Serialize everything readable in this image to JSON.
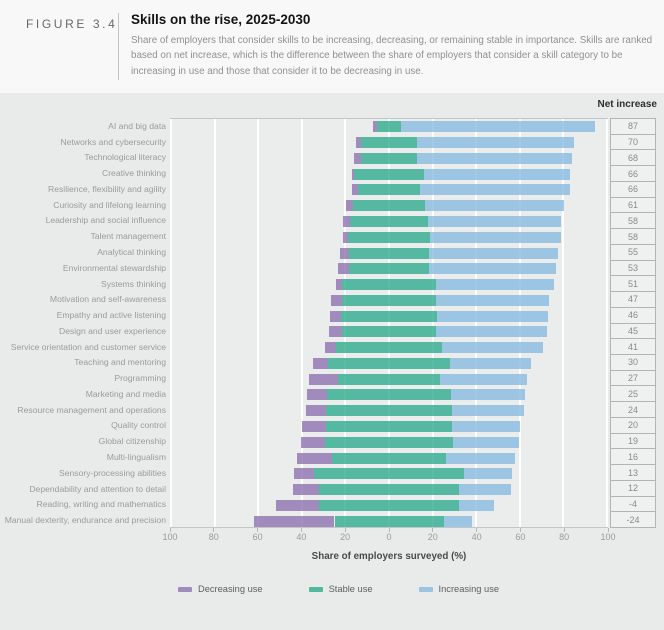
{
  "header": {
    "figure_label": "FIGURE 3.4",
    "title": "Skills on the rise, 2025-2030",
    "subtitle": "Share of employers that consider skills to be increasing, decreasing, or remaining stable in importance. Skills are ranked based on net increase, which is the difference between the share of employers that consider a skill category to be increasing in use and those that consider it to be decreasing in use."
  },
  "chart_data": {
    "type": "bar",
    "orientation": "horizontal-diverging-stacked",
    "title": "Skills on the rise, 2025-2030",
    "xlabel": "Share of employers surveyed (%)",
    "net_column_header": "Net increase",
    "categories": [
      "AI and big data",
      "Networks and cybersecurity",
      "Technological literacy",
      "Creative thinking",
      "Resilience, flexibility and agility",
      "Curiosity and lifelong learning",
      "Leadership and social influence",
      "Talent management",
      "Analytical thinking",
      "Environmental stewardship",
      "Systems thinking",
      "Motivation and self-awareness",
      "Empathy and active listening",
      "Design and user experience",
      "Service orientation and customer service",
      "Teaching and mentoring",
      "Programming",
      "Marketing and media",
      "Resource management and operations",
      "Quality control",
      "Global citizenship",
      "Multi-lingualism",
      "Sensory-processing abilities",
      "Dependability and attention to detail",
      "Reading, writing and mathematics",
      "Manual dexterity, endurance and precision"
    ],
    "series": [
      {
        "name": "Decreasing use",
        "color": "#8a6fae",
        "values": [
          2,
          2,
          3,
          1,
          3,
          3,
          3,
          2,
          4,
          5,
          3,
          5,
          5,
          6,
          5,
          7,
          13,
          9,
          9,
          11,
          11,
          16,
          9,
          12,
          20,
          37
        ]
      },
      {
        "name": "Stable use",
        "color": "#2aa98c",
        "values": [
          11,
          26,
          26,
          32,
          28,
          33,
          36,
          38,
          37,
          37,
          43,
          43,
          44,
          43,
          49,
          56,
          47,
          57,
          58,
          58,
          59,
          52,
          69,
          64,
          64,
          50
        ]
      },
      {
        "name": "Increasing use",
        "color": "#85b9e0",
        "values": [
          89,
          72,
          71,
          67,
          69,
          64,
          61,
          60,
          59,
          58,
          54,
          52,
          51,
          51,
          46,
          37,
          40,
          34,
          33,
          31,
          30,
          32,
          22,
          24,
          16,
          13
        ]
      }
    ],
    "net_increase": [
      87,
      70,
      68,
      66,
      66,
      61,
      58,
      58,
      55,
      53,
      51,
      47,
      46,
      45,
      41,
      30,
      27,
      25,
      24,
      20,
      19,
      16,
      13,
      12,
      -4,
      -24
    ],
    "x_axis": {
      "range": [
        -100,
        100
      ],
      "tick_step": 20,
      "tick_labels": [
        "100",
        "80",
        "60",
        "40",
        "20",
        "0",
        "20",
        "40",
        "60",
        "80",
        "100"
      ]
    },
    "layout": {
      "stable_segment_centered_at_zero": true,
      "grid": true,
      "legend_position": "bottom",
      "segment_opacity": 0.78
    }
  }
}
